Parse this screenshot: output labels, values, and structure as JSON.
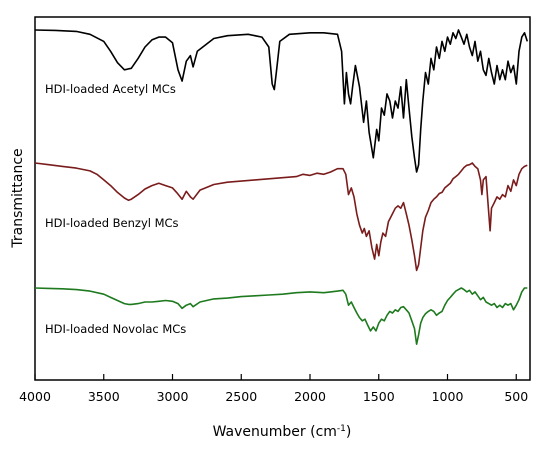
{
  "chart_data": {
    "type": "line",
    "xlabel": "Wavenumber (cm",
    "xlabel_sup": "-1",
    "xlabel_close": ")",
    "ylabel": "Transmittance",
    "xlim": [
      4000,
      400
    ],
    "x_reversed": true,
    "xticks": [
      4000,
      3500,
      3000,
      2500,
      2000,
      1500,
      1000,
      500
    ],
    "y_ticks_shown": false,
    "grid": false,
    "series": [
      {
        "name": "HDI-loaded Acetyl MCs",
        "color": "#000000",
        "label_color": "#000000",
        "points": [
          [
            4000,
            0.0
          ],
          [
            3850,
            0.003
          ],
          [
            3700,
            0.01
          ],
          [
            3600,
            0.03
          ],
          [
            3500,
            0.08
          ],
          [
            3450,
            0.15
          ],
          [
            3400,
            0.23
          ],
          [
            3350,
            0.28
          ],
          [
            3300,
            0.27
          ],
          [
            3250,
            0.2
          ],
          [
            3200,
            0.12
          ],
          [
            3150,
            0.07
          ],
          [
            3100,
            0.05
          ],
          [
            3050,
            0.05
          ],
          [
            3000,
            0.09
          ],
          [
            2960,
            0.28
          ],
          [
            2930,
            0.36
          ],
          [
            2900,
            0.22
          ],
          [
            2870,
            0.18
          ],
          [
            2850,
            0.26
          ],
          [
            2820,
            0.15
          ],
          [
            2700,
            0.06
          ],
          [
            2600,
            0.04
          ],
          [
            2450,
            0.03
          ],
          [
            2350,
            0.05
          ],
          [
            2300,
            0.12
          ],
          [
            2275,
            0.38
          ],
          [
            2260,
            0.42
          ],
          [
            2245,
            0.3
          ],
          [
            2220,
            0.08
          ],
          [
            2150,
            0.03
          ],
          [
            2000,
            0.02
          ],
          [
            1900,
            0.02
          ],
          [
            1800,
            0.03
          ],
          [
            1770,
            0.15
          ],
          [
            1750,
            0.52
          ],
          [
            1735,
            0.3
          ],
          [
            1720,
            0.45
          ],
          [
            1705,
            0.52
          ],
          [
            1690,
            0.4
          ],
          [
            1670,
            0.25
          ],
          [
            1640,
            0.4
          ],
          [
            1610,
            0.65
          ],
          [
            1590,
            0.5
          ],
          [
            1570,
            0.72
          ],
          [
            1540,
            0.9
          ],
          [
            1515,
            0.7
          ],
          [
            1500,
            0.78
          ],
          [
            1480,
            0.55
          ],
          [
            1460,
            0.6
          ],
          [
            1440,
            0.45
          ],
          [
            1420,
            0.5
          ],
          [
            1400,
            0.62
          ],
          [
            1380,
            0.5
          ],
          [
            1360,
            0.55
          ],
          [
            1340,
            0.4
          ],
          [
            1320,
            0.62
          ],
          [
            1300,
            0.35
          ],
          [
            1280,
            0.55
          ],
          [
            1260,
            0.75
          ],
          [
            1240,
            0.9
          ],
          [
            1225,
            1.0
          ],
          [
            1210,
            0.95
          ],
          [
            1195,
            0.7
          ],
          [
            1180,
            0.5
          ],
          [
            1160,
            0.3
          ],
          [
            1140,
            0.38
          ],
          [
            1120,
            0.2
          ],
          [
            1100,
            0.28
          ],
          [
            1080,
            0.12
          ],
          [
            1060,
            0.2
          ],
          [
            1040,
            0.08
          ],
          [
            1020,
            0.15
          ],
          [
            1000,
            0.05
          ],
          [
            980,
            0.1
          ],
          [
            960,
            0.02
          ],
          [
            940,
            0.06
          ],
          [
            920,
            0.0
          ],
          [
            900,
            0.05
          ],
          [
            880,
            0.1
          ],
          [
            860,
            0.03
          ],
          [
            840,
            0.12
          ],
          [
            820,
            0.18
          ],
          [
            800,
            0.08
          ],
          [
            780,
            0.22
          ],
          [
            760,
            0.15
          ],
          [
            740,
            0.28
          ],
          [
            720,
            0.32
          ],
          [
            700,
            0.2
          ],
          [
            680,
            0.3
          ],
          [
            660,
            0.38
          ],
          [
            640,
            0.25
          ],
          [
            620,
            0.35
          ],
          [
            600,
            0.28
          ],
          [
            580,
            0.35
          ],
          [
            560,
            0.22
          ],
          [
            540,
            0.3
          ],
          [
            520,
            0.25
          ],
          [
            500,
            0.38
          ],
          [
            480,
            0.15
          ],
          [
            460,
            0.05
          ],
          [
            440,
            0.02
          ],
          [
            420,
            0.08
          ]
        ]
      },
      {
        "name": "HDI-loaded Benzyl MCs",
        "color": "#7a1c1c",
        "label_color": "#7a1c1c",
        "points": [
          [
            4000,
            0.0
          ],
          [
            3900,
            0.015
          ],
          [
            3800,
            0.03
          ],
          [
            3700,
            0.045
          ],
          [
            3600,
            0.07
          ],
          [
            3550,
            0.1
          ],
          [
            3500,
            0.15
          ],
          [
            3450,
            0.2
          ],
          [
            3400,
            0.26
          ],
          [
            3350,
            0.31
          ],
          [
            3320,
            0.33
          ],
          [
            3300,
            0.32
          ],
          [
            3250,
            0.28
          ],
          [
            3200,
            0.23
          ],
          [
            3150,
            0.2
          ],
          [
            3100,
            0.18
          ],
          [
            3050,
            0.2
          ],
          [
            3000,
            0.22
          ],
          [
            2970,
            0.26
          ],
          [
            2930,
            0.32
          ],
          [
            2900,
            0.25
          ],
          [
            2870,
            0.3
          ],
          [
            2850,
            0.32
          ],
          [
            2800,
            0.24
          ],
          [
            2700,
            0.19
          ],
          [
            2600,
            0.17
          ],
          [
            2500,
            0.16
          ],
          [
            2400,
            0.15
          ],
          [
            2300,
            0.14
          ],
          [
            2200,
            0.13
          ],
          [
            2100,
            0.12
          ],
          [
            2050,
            0.1
          ],
          [
            2000,
            0.11
          ],
          [
            1950,
            0.09
          ],
          [
            1900,
            0.1
          ],
          [
            1850,
            0.08
          ],
          [
            1800,
            0.05
          ],
          [
            1760,
            0.05
          ],
          [
            1740,
            0.1
          ],
          [
            1720,
            0.28
          ],
          [
            1700,
            0.22
          ],
          [
            1680,
            0.3
          ],
          [
            1660,
            0.45
          ],
          [
            1640,
            0.55
          ],
          [
            1620,
            0.62
          ],
          [
            1605,
            0.58
          ],
          [
            1590,
            0.65
          ],
          [
            1570,
            0.6
          ],
          [
            1550,
            0.75
          ],
          [
            1530,
            0.85
          ],
          [
            1515,
            0.72
          ],
          [
            1500,
            0.82
          ],
          [
            1485,
            0.7
          ],
          [
            1470,
            0.62
          ],
          [
            1450,
            0.65
          ],
          [
            1430,
            0.52
          ],
          [
            1400,
            0.45
          ],
          [
            1380,
            0.4
          ],
          [
            1360,
            0.38
          ],
          [
            1340,
            0.4
          ],
          [
            1320,
            0.35
          ],
          [
            1300,
            0.45
          ],
          [
            1280,
            0.55
          ],
          [
            1260,
            0.68
          ],
          [
            1240,
            0.82
          ],
          [
            1225,
            0.95
          ],
          [
            1210,
            0.9
          ],
          [
            1195,
            0.75
          ],
          [
            1180,
            0.6
          ],
          [
            1160,
            0.48
          ],
          [
            1140,
            0.42
          ],
          [
            1120,
            0.35
          ],
          [
            1100,
            0.32
          ],
          [
            1080,
            0.3
          ],
          [
            1060,
            0.27
          ],
          [
            1040,
            0.26
          ],
          [
            1020,
            0.22
          ],
          [
            1000,
            0.2
          ],
          [
            980,
            0.18
          ],
          [
            960,
            0.14
          ],
          [
            940,
            0.12
          ],
          [
            920,
            0.1
          ],
          [
            900,
            0.07
          ],
          [
            880,
            0.04
          ],
          [
            860,
            0.02
          ],
          [
            840,
            0.015
          ],
          [
            820,
            0.0
          ],
          [
            800,
            0.03
          ],
          [
            780,
            0.05
          ],
          [
            760,
            0.15
          ],
          [
            750,
            0.28
          ],
          [
            740,
            0.15
          ],
          [
            720,
            0.12
          ],
          [
            700,
            0.45
          ],
          [
            690,
            0.6
          ],
          [
            680,
            0.4
          ],
          [
            660,
            0.35
          ],
          [
            640,
            0.3
          ],
          [
            620,
            0.32
          ],
          [
            600,
            0.28
          ],
          [
            580,
            0.3
          ],
          [
            560,
            0.2
          ],
          [
            540,
            0.25
          ],
          [
            520,
            0.15
          ],
          [
            500,
            0.2
          ],
          [
            480,
            0.1
          ],
          [
            460,
            0.05
          ],
          [
            440,
            0.03
          ],
          [
            420,
            0.02
          ]
        ]
      },
      {
        "name": "HDI-loaded Novolac MCs",
        "color": "#1e7a1e",
        "label_color": "#1e7a1e",
        "points": [
          [
            4000,
            0.0
          ],
          [
            3900,
            0.005
          ],
          [
            3800,
            0.01
          ],
          [
            3700,
            0.02
          ],
          [
            3600,
            0.04
          ],
          [
            3500,
            0.08
          ],
          [
            3450,
            0.12
          ],
          [
            3400,
            0.16
          ],
          [
            3350,
            0.2
          ],
          [
            3320,
            0.21
          ],
          [
            3300,
            0.21
          ],
          [
            3250,
            0.2
          ],
          [
            3200,
            0.18
          ],
          [
            3150,
            0.18
          ],
          [
            3100,
            0.17
          ],
          [
            3050,
            0.16
          ],
          [
            3000,
            0.17
          ],
          [
            2960,
            0.2
          ],
          [
            2930,
            0.26
          ],
          [
            2900,
            0.22
          ],
          [
            2870,
            0.2
          ],
          [
            2850,
            0.24
          ],
          [
            2800,
            0.18
          ],
          [
            2700,
            0.14
          ],
          [
            2600,
            0.13
          ],
          [
            2500,
            0.11
          ],
          [
            2400,
            0.1
          ],
          [
            2300,
            0.09
          ],
          [
            2200,
            0.08
          ],
          [
            2100,
            0.06
          ],
          [
            2000,
            0.05
          ],
          [
            1900,
            0.06
          ],
          [
            1850,
            0.05
          ],
          [
            1800,
            0.04
          ],
          [
            1760,
            0.03
          ],
          [
            1740,
            0.08
          ],
          [
            1720,
            0.22
          ],
          [
            1700,
            0.18
          ],
          [
            1680,
            0.25
          ],
          [
            1660,
            0.32
          ],
          [
            1640,
            0.38
          ],
          [
            1620,
            0.42
          ],
          [
            1600,
            0.4
          ],
          [
            1580,
            0.48
          ],
          [
            1560,
            0.55
          ],
          [
            1540,
            0.5
          ],
          [
            1520,
            0.55
          ],
          [
            1500,
            0.45
          ],
          [
            1480,
            0.4
          ],
          [
            1460,
            0.42
          ],
          [
            1440,
            0.35
          ],
          [
            1420,
            0.3
          ],
          [
            1400,
            0.32
          ],
          [
            1380,
            0.28
          ],
          [
            1360,
            0.3
          ],
          [
            1340,
            0.25
          ],
          [
            1320,
            0.24
          ],
          [
            1300,
            0.28
          ],
          [
            1280,
            0.32
          ],
          [
            1260,
            0.42
          ],
          [
            1240,
            0.52
          ],
          [
            1225,
            0.72
          ],
          [
            1210,
            0.6
          ],
          [
            1195,
            0.45
          ],
          [
            1180,
            0.38
          ],
          [
            1160,
            0.33
          ],
          [
            1140,
            0.3
          ],
          [
            1120,
            0.28
          ],
          [
            1100,
            0.3
          ],
          [
            1080,
            0.35
          ],
          [
            1060,
            0.32
          ],
          [
            1040,
            0.3
          ],
          [
            1020,
            0.22
          ],
          [
            1000,
            0.16
          ],
          [
            980,
            0.12
          ],
          [
            960,
            0.08
          ],
          [
            940,
            0.04
          ],
          [
            920,
            0.02
          ],
          [
            900,
            0.0
          ],
          [
            880,
            0.02
          ],
          [
            860,
            0.05
          ],
          [
            840,
            0.03
          ],
          [
            820,
            0.08
          ],
          [
            800,
            0.05
          ],
          [
            780,
            0.1
          ],
          [
            760,
            0.15
          ],
          [
            740,
            0.12
          ],
          [
            720,
            0.18
          ],
          [
            700,
            0.2
          ],
          [
            680,
            0.22
          ],
          [
            660,
            0.2
          ],
          [
            640,
            0.25
          ],
          [
            620,
            0.22
          ],
          [
            600,
            0.25
          ],
          [
            580,
            0.2
          ],
          [
            560,
            0.22
          ],
          [
            540,
            0.2
          ],
          [
            520,
            0.28
          ],
          [
            500,
            0.22
          ],
          [
            480,
            0.15
          ],
          [
            460,
            0.05
          ],
          [
            440,
            0.0
          ],
          [
            420,
            0.0
          ]
        ]
      }
    ]
  }
}
